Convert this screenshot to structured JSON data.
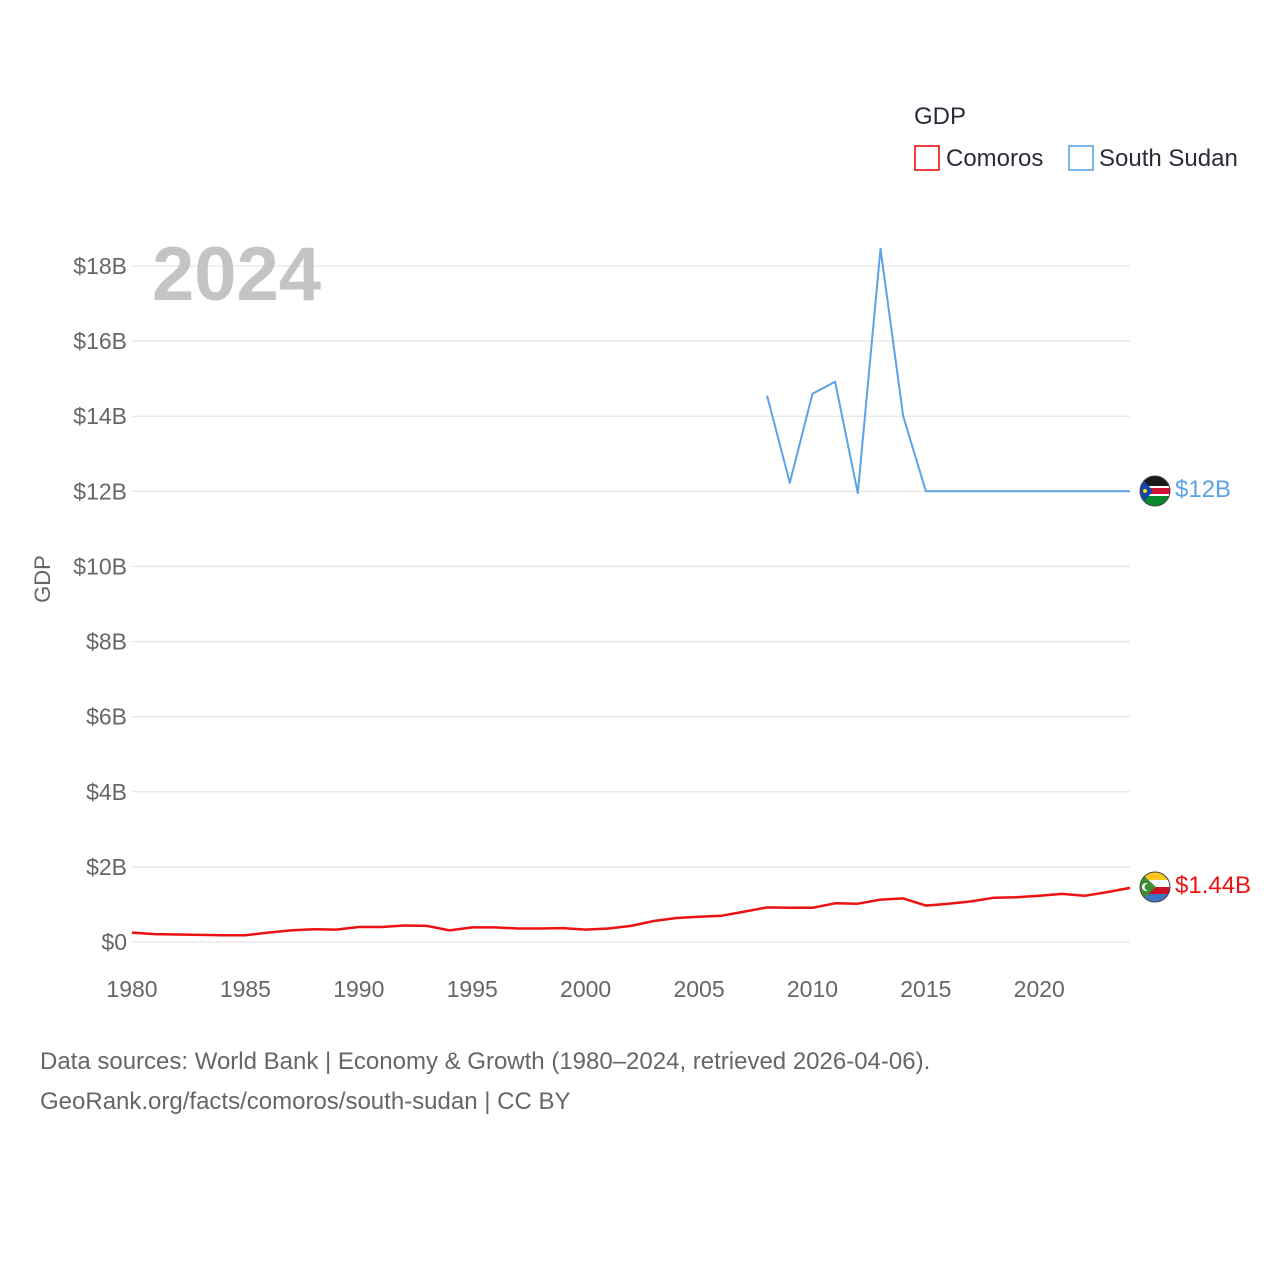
{
  "legend": {
    "title": "GDP",
    "items": [
      {
        "label": "Comoros",
        "color": "#ee1111"
      },
      {
        "label": "South Sudan",
        "color": "#5ba3e6"
      }
    ]
  },
  "year_label": "2024",
  "end_labels": {
    "comoros": "$1.44B",
    "south_sudan": "$12B"
  },
  "flags": {
    "comoros": "comoros-flag-icon",
    "south_sudan": "south-sudan-flag-icon"
  },
  "source": {
    "line1": "Data sources: World Bank | Economy & Growth (1980–2024, retrieved 2026-04-06).",
    "line2": "GeoRank.org/facts/comoros/south-sudan | CC BY"
  },
  "chart_data": {
    "type": "line",
    "title": "",
    "xlabel": "",
    "ylabel": "GDP",
    "xlim": [
      1980,
      2024
    ],
    "ylim": [
      0,
      18
    ],
    "y_unit": "billion USD",
    "x_ticks": [
      "1980",
      "1985",
      "1990",
      "1995",
      "2000",
      "2005",
      "2010",
      "2015",
      "2020"
    ],
    "x_tick_values": [
      1980,
      1985,
      1990,
      1995,
      2000,
      2005,
      2010,
      2015,
      2020
    ],
    "y_ticks": [
      "$0",
      "$2B",
      "$4B",
      "$6B",
      "$8B",
      "$10B",
      "$12B",
      "$14B",
      "$16B",
      "$18B"
    ],
    "y_tick_values": [
      0,
      2,
      4,
      6,
      8,
      10,
      12,
      14,
      16,
      18
    ],
    "series": [
      {
        "name": "Comoros",
        "color": "#ee1111",
        "x": [
          1980,
          1981,
          1982,
          1983,
          1984,
          1985,
          1986,
          1987,
          1988,
          1989,
          1990,
          1991,
          1992,
          1993,
          1994,
          1995,
          1996,
          1997,
          1998,
          1999,
          2000,
          2001,
          2002,
          2003,
          2004,
          2005,
          2006,
          2007,
          2008,
          2009,
          2010,
          2011,
          2012,
          2013,
          2014,
          2015,
          2016,
          2017,
          2018,
          2019,
          2020,
          2021,
          2022,
          2023,
          2024
        ],
        "values": [
          0.25,
          0.21,
          0.2,
          0.19,
          0.18,
          0.18,
          0.25,
          0.31,
          0.34,
          0.33,
          0.4,
          0.4,
          0.44,
          0.43,
          0.31,
          0.39,
          0.39,
          0.36,
          0.36,
          0.37,
          0.33,
          0.36,
          0.43,
          0.56,
          0.64,
          0.67,
          0.7,
          0.81,
          0.92,
          0.91,
          0.91,
          1.03,
          1.02,
          1.13,
          1.16,
          0.97,
          1.02,
          1.08,
          1.18,
          1.19,
          1.23,
          1.28,
          1.23,
          1.33,
          1.44
        ]
      },
      {
        "name": "South Sudan",
        "color": "#5ba3e6",
        "x": [
          2008,
          2009,
          2010,
          2011,
          2012,
          2013,
          2014,
          2015,
          2016,
          2017,
          2018,
          2019,
          2020,
          2021,
          2022,
          2023,
          2024
        ],
        "values": [
          14.55,
          12.23,
          14.6,
          14.92,
          11.95,
          18.46,
          14.0,
          12.0,
          12.0,
          12.0,
          12.0,
          12.0,
          12.0,
          12.0,
          12.0,
          12.0,
          12.0
        ]
      }
    ]
  }
}
